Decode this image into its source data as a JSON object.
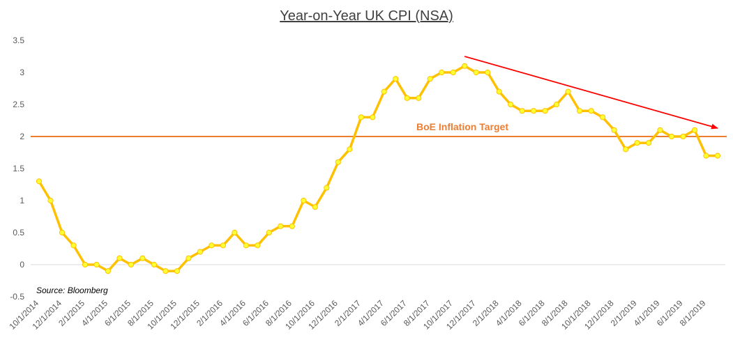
{
  "chart_data": {
    "type": "line",
    "title": "Year-on-Year UK CPI (NSA)",
    "xlabel": "",
    "ylabel": "",
    "ylim": [
      -0.5,
      3.5
    ],
    "yticks": [
      -0.5,
      0,
      0.5,
      1,
      1.5,
      2,
      2.5,
      3,
      3.5
    ],
    "ytick_labels": [
      "-0.5",
      "0",
      "0.5",
      "1",
      "1.5",
      "2",
      "2.5",
      "3",
      "3.5"
    ],
    "x_tick_labels": [
      "10/1/2014",
      "12/1/2014",
      "2/1/2015",
      "4/1/2015",
      "6/1/2015",
      "8/1/2015",
      "10/1/2015",
      "12/1/2015",
      "2/1/2016",
      "4/1/2016",
      "6/1/2016",
      "8/1/2016",
      "10/1/2016",
      "12/1/2016",
      "2/1/2017",
      "4/1/2017",
      "6/1/2017",
      "8/1/2017",
      "10/1/2017",
      "12/1/2017",
      "2/1/2018",
      "4/1/2018",
      "6/1/2018",
      "8/1/2018",
      "10/1/2018",
      "12/1/2018",
      "2/1/2019",
      "4/1/2019",
      "6/1/2019",
      "8/1/2019"
    ],
    "x_dates": [
      "10/1/2014",
      "11/1/2014",
      "12/1/2014",
      "1/1/2015",
      "2/1/2015",
      "3/1/2015",
      "4/1/2015",
      "5/1/2015",
      "6/1/2015",
      "7/1/2015",
      "8/1/2015",
      "9/1/2015",
      "10/1/2015",
      "11/1/2015",
      "12/1/2015",
      "1/1/2016",
      "2/1/2016",
      "3/1/2016",
      "4/1/2016",
      "5/1/2016",
      "6/1/2016",
      "7/1/2016",
      "8/1/2016",
      "9/1/2016",
      "10/1/2016",
      "11/1/2016",
      "12/1/2016",
      "1/1/2017",
      "2/1/2017",
      "3/1/2017",
      "4/1/2017",
      "5/1/2017",
      "6/1/2017",
      "7/1/2017",
      "8/1/2017",
      "9/1/2017",
      "10/1/2017",
      "11/1/2017",
      "12/1/2017",
      "1/1/2018",
      "2/1/2018",
      "3/1/2018",
      "4/1/2018",
      "5/1/2018",
      "6/1/2018",
      "7/1/2018",
      "8/1/2018",
      "9/1/2018",
      "10/1/2018",
      "11/1/2018",
      "12/1/2018",
      "1/1/2019",
      "2/1/2019",
      "3/1/2019",
      "4/1/2019",
      "5/1/2019",
      "6/1/2019",
      "7/1/2019",
      "8/1/2019",
      "9/1/2019"
    ],
    "series": [
      {
        "values": [
          1.3,
          1.0,
          0.5,
          0.3,
          0.0,
          0.0,
          -0.1,
          0.1,
          0.0,
          0.1,
          0.0,
          -0.1,
          -0.1,
          0.1,
          0.2,
          0.3,
          0.3,
          0.5,
          0.3,
          0.3,
          0.5,
          0.6,
          0.6,
          1.0,
          0.9,
          1.2,
          1.6,
          1.8,
          2.3,
          2.3,
          2.7,
          2.9,
          2.6,
          2.6,
          2.9,
          3.0,
          3.0,
          3.1,
          3.0,
          3.0,
          2.7,
          2.5,
          2.4,
          2.4,
          2.4,
          2.5,
          2.7,
          2.4,
          2.4,
          2.3,
          2.1,
          1.8,
          1.9,
          1.9,
          2.1,
          2.0,
          2.0,
          2.1,
          1.7,
          1.7
        ],
        "color": "#FFC000",
        "marker_color": "#FFFF33"
      }
    ],
    "reference_line": {
      "label": "BoE Inflation Target",
      "value": 2.0,
      "color": "#ED7D31"
    },
    "trend_arrow": {
      "from_date": "11/1/2017",
      "from_value": 3.25,
      "to_date": "9/1/2019",
      "to_value": 2.13,
      "color": "#FF0000"
    },
    "annotations": [
      {
        "text": "Source: Bloomberg"
      }
    ],
    "grid": false,
    "legend": "none"
  }
}
